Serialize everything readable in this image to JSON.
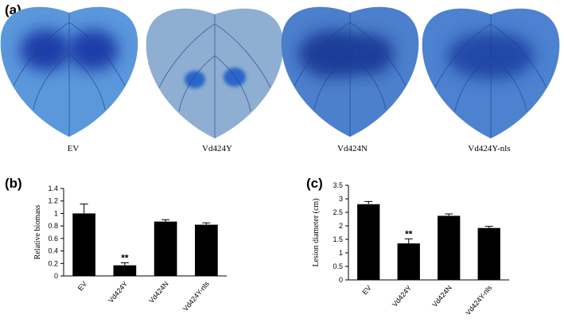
{
  "panel_a": {
    "panel_label": "(a)",
    "captions": [
      "EV",
      "Vd424Y",
      "Vd424N",
      "Vd424Y-nls"
    ]
  },
  "chart_data": [
    {
      "type": "bar",
      "panel_label": "(b)",
      "y_label": "Relative biomass",
      "categories": [
        "EV",
        "Vd424Y",
        "Vd424N",
        "Vd424Y-nls"
      ],
      "values": [
        1.0,
        0.17,
        0.87,
        0.82
      ],
      "errors": [
        0.15,
        0.04,
        0.03,
        0.03
      ],
      "significance": [
        null,
        "**",
        null,
        null
      ],
      "color": "#000000",
      "ylim": [
        0,
        1.4
      ],
      "yticks": [
        0,
        0.2,
        0.4,
        0.6,
        0.8,
        1,
        1.2,
        1.4
      ]
    },
    {
      "type": "bar",
      "panel_label": "(c)",
      "y_label": "Lesion diameter (cm)",
      "categories": [
        "EV",
        "Vd424Y",
        "Vd424N",
        "Vd424Y-nls"
      ],
      "values": [
        2.8,
        1.35,
        2.37,
        1.92
      ],
      "errors": [
        0.1,
        0.17,
        0.07,
        0.06
      ],
      "significance": [
        null,
        "**",
        null,
        null
      ],
      "color": "#000000",
      "ylim": [
        0,
        3.5
      ],
      "yticks": [
        0,
        0.5,
        1,
        1.5,
        2,
        2.5,
        3,
        3.5
      ]
    }
  ]
}
